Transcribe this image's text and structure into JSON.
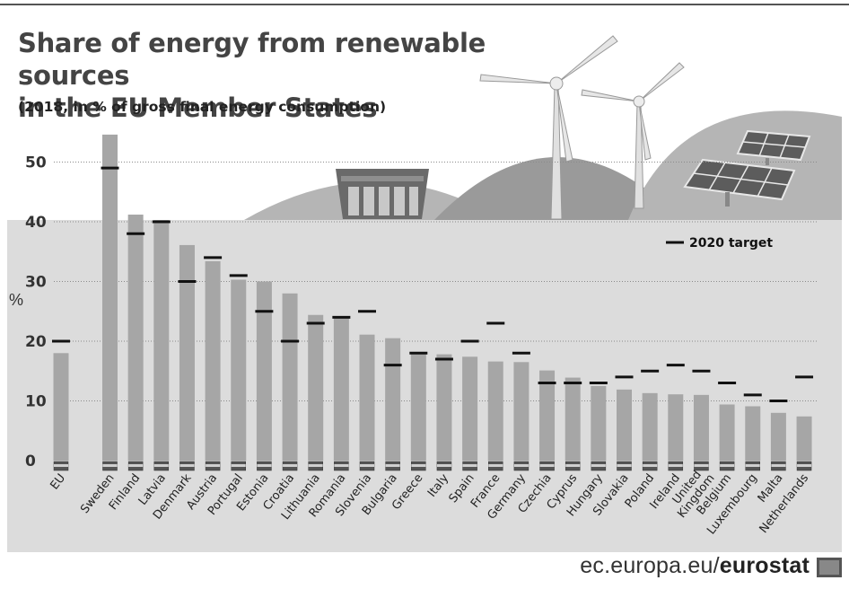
{
  "title_line1": "Share of energy from renewable sources",
  "title_line2": "in the EU Member States",
  "subtitle": "(2018, in % of gross final energy consumption)",
  "footer": {
    "site_prefix": "ec.europa.eu/",
    "site_brand": "eurostat"
  },
  "colors": {
    "background": "#ffffff",
    "panel": "#dcdcdc",
    "hills": "#b5b5b5",
    "bar": "#a6a6a6",
    "target": "#111111",
    "text": "#333333"
  },
  "icons": [
    "wind-turbine-icon",
    "solar-panel-icon",
    "hydro-dam-icon",
    "flag-icon",
    "eurostat-logo-icon"
  ],
  "chart_data": {
    "type": "bar",
    "title": "Share of energy from renewable sources in the EU Member States",
    "subtitle": "(2018, in % of gross final energy consumption)",
    "ylabel": "%",
    "xlabel": "",
    "ylim": [
      0,
      55
    ],
    "yticks": [
      0,
      10,
      20,
      30,
      40,
      50
    ],
    "grid": true,
    "legend_position": "top-right",
    "categories": [
      "EU",
      "Sweden",
      "Finland",
      "Latvia",
      "Denmark",
      "Austria",
      "Portugal",
      "Estonia",
      "Croatia",
      "Lithuania",
      "Romania",
      "Slovenia",
      "Bulgaria",
      "Greece",
      "Italy",
      "Spain",
      "France",
      "Germany",
      "Czechia",
      "Cyprus",
      "Hungary",
      "Slovakia",
      "Poland",
      "Ireland",
      "United Kingdom",
      "Belgium",
      "Luxembourg",
      "Malta",
      "Netherlands"
    ],
    "series": [
      {
        "type": "bar",
        "values": [
          18.0,
          54.6,
          41.2,
          40.3,
          36.1,
          33.4,
          30.3,
          30.0,
          28.0,
          24.4,
          23.9,
          21.1,
          20.5,
          18.0,
          17.8,
          17.4,
          16.6,
          16.5,
          15.1,
          13.9,
          12.5,
          11.9,
          11.3,
          11.1,
          11.0,
          9.4,
          9.1,
          8.0,
          7.4
        ]
      },
      {
        "name": "2020 target",
        "type": "marker",
        "values": [
          20,
          49,
          38,
          40,
          30,
          34,
          31,
          25,
          20,
          23,
          24,
          25,
          16,
          18,
          17,
          20,
          23,
          18,
          13,
          13,
          13,
          14,
          15,
          16,
          15,
          13,
          11,
          10,
          14
        ]
      }
    ]
  }
}
